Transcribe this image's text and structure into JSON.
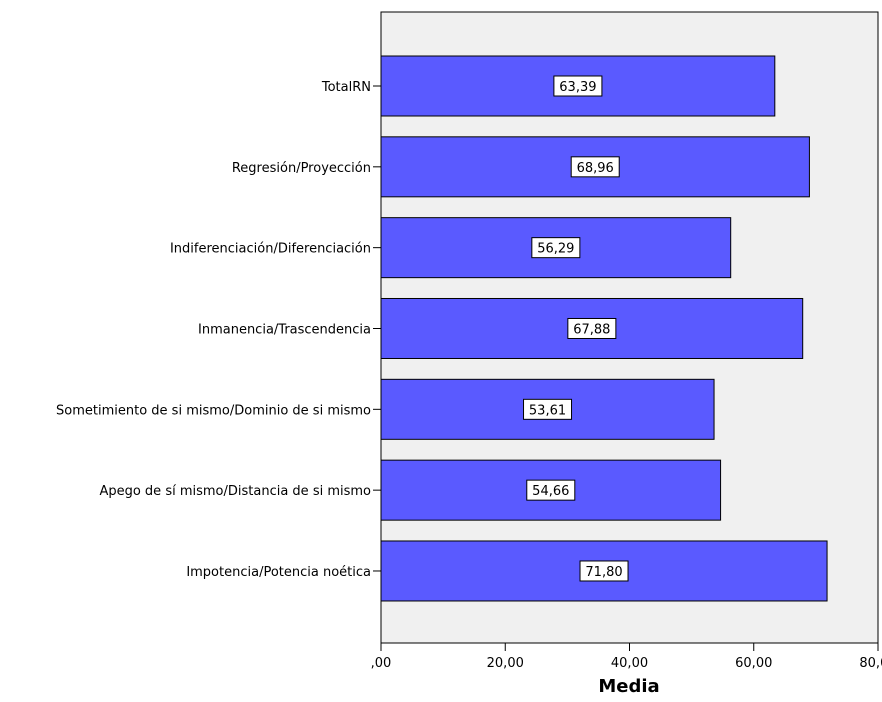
{
  "chart_data": {
    "type": "bar",
    "orientation": "horizontal",
    "categories": [
      "TotalRN",
      "Regresión/Proyección",
      "Indiferenciación/Diferenciación",
      "Inmanencia/Trascendencia",
      "Sometimiento de si mismo/Dominio de si mismo",
      "Apego de sí mismo/Distancia de si mismo",
      "Impotencia/Potencia noética"
    ],
    "values": [
      63.39,
      68.96,
      56.29,
      67.88,
      53.61,
      54.66,
      71.8
    ],
    "data_labels": [
      "63,39",
      "68,96",
      "56,29",
      "67,88",
      "53,61",
      "54,66",
      "71,80"
    ],
    "xlabel": "Media",
    "xlim": [
      0,
      80
    ],
    "xticks": [
      0,
      20,
      40,
      60,
      80
    ],
    "xtick_labels": [
      ",00",
      "20,00",
      "40,00",
      "60,00",
      "80,00"
    ],
    "grid": false,
    "colors": {
      "bar_fill": "#5a5aff",
      "bar_stroke": "#000000",
      "plot_background": "#f0f0f0"
    }
  }
}
